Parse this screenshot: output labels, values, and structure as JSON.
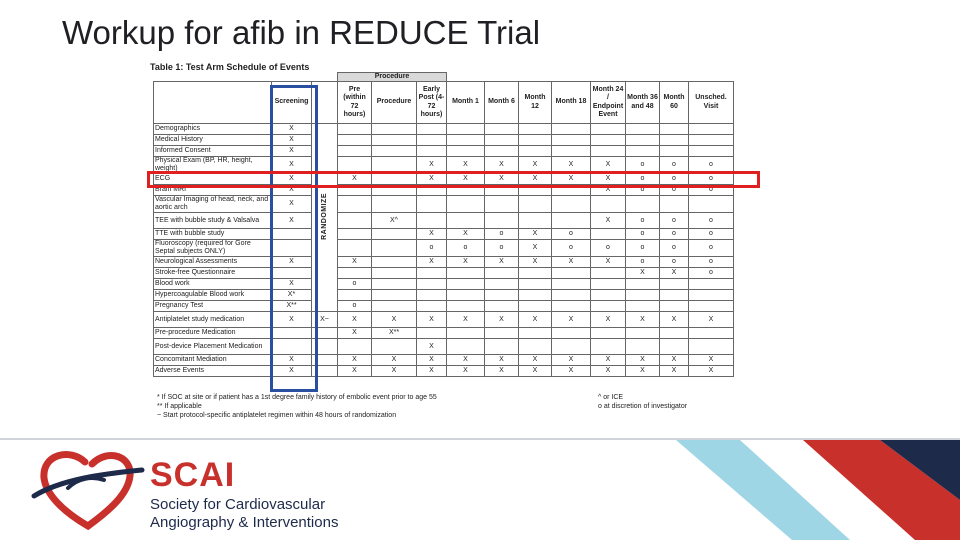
{
  "slide": {
    "title": "Workup for afib in REDUCE Trial"
  },
  "table": {
    "caption": "Table 1: Test Arm Schedule of Events",
    "procedure_header": "Procedure",
    "randomize_label": "RANDOMIZE",
    "columns": [
      "Screening",
      "Pre (within 72 hours)",
      "Procedure",
      "Early Post (4-72 hours)",
      "Month 1",
      "Month 6",
      "Month 12",
      "Month 18",
      "Month 24 / Endpoint Event",
      "Month 36 and 48",
      "Month 60",
      "Unsched. Visit"
    ],
    "rows": [
      {
        "label": "Demographics",
        "screening": "X",
        "pre": "",
        "proc": "",
        "early": "",
        "m1": "",
        "m6": "",
        "m12": "",
        "m18": "",
        "m24": "",
        "m36": "",
        "m60": "",
        "unsched": ""
      },
      {
        "label": "Medical History",
        "screening": "X",
        "pre": "",
        "proc": "",
        "early": "",
        "m1": "",
        "m6": "",
        "m12": "",
        "m18": "",
        "m24": "",
        "m36": "",
        "m60": "",
        "unsched": ""
      },
      {
        "label": "Informed Consent",
        "screening": "X",
        "pre": "",
        "proc": "",
        "early": "",
        "m1": "",
        "m6": "",
        "m12": "",
        "m18": "",
        "m24": "",
        "m36": "",
        "m60": "",
        "unsched": ""
      },
      {
        "label": "Physical Exam (BP, HR, height, weight)",
        "screening": "X",
        "pre": "",
        "proc": "",
        "early": "X",
        "m1": "X",
        "m6": "X",
        "m12": "X",
        "m18": "X",
        "m24": "X",
        "m36": "o",
        "m60": "o",
        "unsched": "o"
      },
      {
        "label": "ECG",
        "screening": "X",
        "pre": "X",
        "proc": "",
        "early": "X",
        "m1": "X",
        "m6": "X",
        "m12": "X",
        "m18": "X",
        "m24": "X",
        "m36": "o",
        "m60": "o",
        "unsched": "o"
      },
      {
        "label": "Brain MRI",
        "screening": "X",
        "pre": "",
        "proc": "",
        "early": "",
        "m1": "",
        "m6": "",
        "m12": "",
        "m18": "",
        "m24": "X",
        "m36": "o",
        "m60": "o",
        "unsched": "o"
      },
      {
        "label": "Vascular Imaging of head, neck, and aortic arch",
        "screening": "X",
        "pre": "",
        "proc": "",
        "early": "",
        "m1": "",
        "m6": "",
        "m12": "",
        "m18": "",
        "m24": "",
        "m36": "",
        "m60": "",
        "unsched": ""
      },
      {
        "label": "TEE with bubble study & Valsalva",
        "screening": "X",
        "pre": "",
        "proc": "X^",
        "early": "",
        "m1": "",
        "m6": "",
        "m12": "",
        "m18": "",
        "m24": "X",
        "m36": "o",
        "m60": "o",
        "unsched": "o"
      },
      {
        "label": "TTE with bubble study",
        "screening": "",
        "pre": "",
        "proc": "",
        "early": "X",
        "m1": "X",
        "m6": "o",
        "m12": "X",
        "m18": "o",
        "m24": "",
        "m36": "o",
        "m60": "o",
        "unsched": "o"
      },
      {
        "label": "Fluoroscopy (required for Gore Septal subjects ONLY)",
        "screening": "",
        "pre": "",
        "proc": "",
        "early": "o",
        "m1": "o",
        "m6": "o",
        "m12": "X",
        "m18": "o",
        "m24": "o",
        "m36": "o",
        "m60": "o",
        "unsched": "o"
      },
      {
        "label": "Neurological Assessments",
        "screening": "X",
        "pre": "X",
        "proc": "",
        "early": "X",
        "m1": "X",
        "m6": "X",
        "m12": "X",
        "m18": "X",
        "m24": "X",
        "m36": "o",
        "m60": "o",
        "unsched": "o"
      },
      {
        "label": "Stroke-free Questionnaire",
        "screening": "",
        "pre": "",
        "proc": "",
        "early": "",
        "m1": "",
        "m6": "",
        "m12": "",
        "m18": "",
        "m24": "",
        "m36": "X",
        "m60": "X",
        "unsched": "o"
      },
      {
        "label": "Blood work",
        "screening": "X",
        "pre": "o",
        "proc": "",
        "early": "",
        "m1": "",
        "m6": "",
        "m12": "",
        "m18": "",
        "m24": "",
        "m36": "",
        "m60": "",
        "unsched": ""
      },
      {
        "label": "Hypercoagulable Blood work",
        "screening": "X*",
        "pre": "",
        "proc": "",
        "early": "",
        "m1": "",
        "m6": "",
        "m12": "",
        "m18": "",
        "m24": "",
        "m36": "",
        "m60": "",
        "unsched": ""
      },
      {
        "label": "Pregnancy Test",
        "screening": "X**",
        "pre": "o",
        "proc": "",
        "early": "",
        "m1": "",
        "m6": "",
        "m12": "",
        "m18": "",
        "m24": "",
        "m36": "",
        "m60": "",
        "unsched": ""
      },
      {
        "label": "Antiplatelet study medication",
        "screening": "X",
        "pre": "X",
        "proc": "X",
        "early": "X",
        "m1": "X",
        "m6": "X",
        "m12": "X",
        "m18": "X",
        "m24": "X",
        "m36": "X",
        "m60": "X",
        "unsched": "X"
      },
      {
        "label": "Pre-procedure Medication",
        "screening": "",
        "pre": "X",
        "proc": "X**",
        "early": "",
        "m1": "",
        "m6": "",
        "m12": "",
        "m18": "",
        "m24": "",
        "m36": "",
        "m60": "",
        "unsched": ""
      },
      {
        "label": "Post-device Placement Medication",
        "screening": "",
        "pre": "",
        "proc": "",
        "early": "X",
        "m1": "",
        "m6": "",
        "m12": "",
        "m18": "",
        "m24": "",
        "m36": "",
        "m60": "",
        "unsched": ""
      },
      {
        "label": "Concomitant Mediation",
        "screening": "X",
        "pre": "X",
        "proc": "X",
        "early": "X",
        "m1": "X",
        "m6": "X",
        "m12": "X",
        "m18": "X",
        "m24": "X",
        "m36": "X",
        "m60": "X",
        "unsched": "X"
      },
      {
        "label": "Adverse Events",
        "screening": "X",
        "pre": "X",
        "proc": "X",
        "early": "X",
        "m1": "X",
        "m6": "X",
        "m12": "X",
        "m18": "X",
        "m24": "X",
        "m36": "X",
        "m60": "X",
        "unsched": "X"
      }
    ],
    "randomize_mark": "X~",
    "footnotes_left": [
      "* If SOC at site or if patient has a 1st degree family history of embolic event prior to age 55",
      "** If applicable",
      "~ Start protocol-specific antiplatelet regimen within 48 hours of randomization"
    ],
    "footnotes_right": [
      "^ or ICE",
      "o at discretion of investigator"
    ]
  },
  "logo": {
    "wordmark": "SCAI",
    "line1": "Society for Cardiovascular",
    "line2": "Angiography & Interventions"
  },
  "colors": {
    "highlight_red": "#e02020",
    "highlight_blue": "#2b4fa0",
    "brand_red": "#c8302c",
    "brand_navy": "#1e2a4a",
    "accent_lightblue": "#9fd6e6"
  }
}
